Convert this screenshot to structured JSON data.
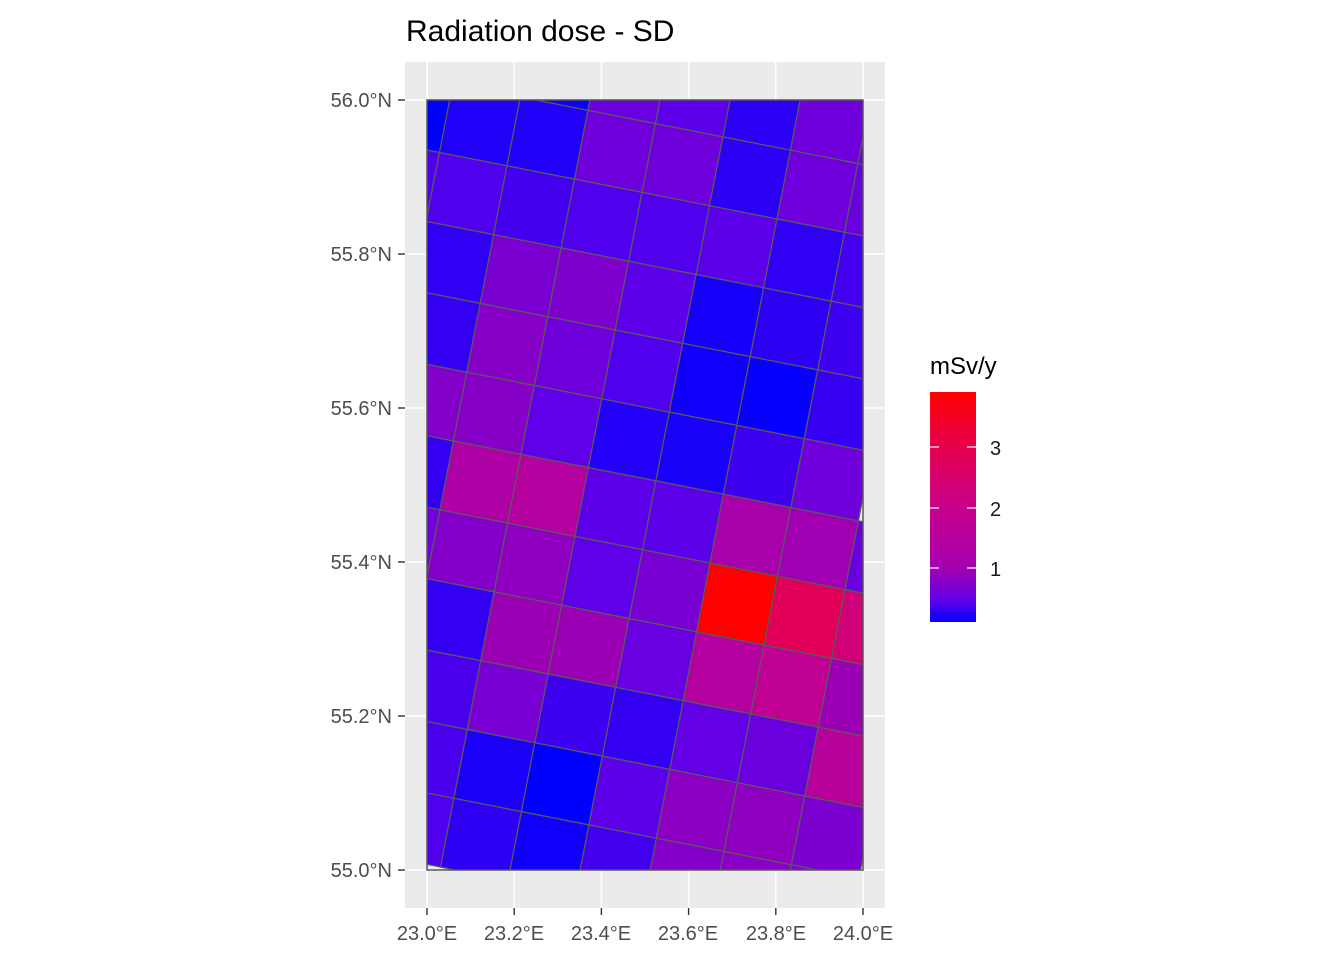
{
  "chart_data": {
    "type": "heatmap",
    "title": "Radiation dose - SD",
    "xlabel": "",
    "ylabel": "",
    "x_ticks": [
      "23.0°E",
      "23.2°E",
      "23.4°E",
      "23.6°E",
      "23.8°E",
      "24.0°E"
    ],
    "x_tick_values": [
      23.0,
      23.2,
      23.4,
      23.6,
      23.8,
      24.0
    ],
    "y_ticks": [
      "55.0°N",
      "55.2°N",
      "55.4°N",
      "55.6°N",
      "55.8°N",
      "56.0°N"
    ],
    "y_tick_values": [
      55.0,
      55.2,
      55.4,
      55.6,
      55.8,
      56.0
    ],
    "xlim": [
      23.0,
      24.0
    ],
    "ylim": [
      55.0,
      56.0
    ],
    "grid": true,
    "legend": {
      "title": "mSv/y",
      "placement": "right",
      "labels": [
        "1",
        "2",
        "3"
      ],
      "label_values": [
        1,
        2,
        3
      ],
      "range": [
        0.1,
        3.9
      ],
      "low_color": "#0000ff",
      "high_color": "#ff0000"
    },
    "cell_grid_note_rows": "rotated grid rows top to bottom, columns left to right; null = outside map",
    "cells": [
      [
        null,
        null,
        0.14,
        0.54,
        0.45,
        0.26,
        0.58,
        0.55,
        null
      ],
      [
        0.1,
        0.22,
        0.22,
        0.58,
        0.58,
        0.26,
        0.58,
        0.55,
        null
      ],
      [
        0.4,
        0.4,
        0.35,
        0.4,
        0.4,
        0.44,
        0.28,
        0.35,
        null
      ],
      [
        0.28,
        0.28,
        0.67,
        0.71,
        0.44,
        0.18,
        0.27,
        0.34,
        null
      ],
      [
        null,
        0.29,
        0.77,
        0.58,
        0.4,
        0.16,
        0.13,
        0.31,
        null
      ],
      [
        null,
        0.74,
        0.77,
        0.46,
        0.23,
        0.19,
        0.34,
        0.58,
        null
      ],
      [
        null,
        0.29,
        1.28,
        1.44,
        0.45,
        0.44,
        1.11,
        0.97,
        0.55
      ],
      [
        null,
        0.6,
        0.74,
        0.83,
        0.46,
        0.66,
        3.9,
        2.8,
        2.27
      ],
      [
        null,
        0.29,
        0.29,
        0.94,
        0.94,
        0.52,
        1.44,
        1.78,
        0.94
      ],
      [
        null,
        null,
        0.38,
        0.66,
        0.33,
        0.29,
        0.48,
        0.55,
        1.55
      ],
      [
        null,
        null,
        0.38,
        0.2,
        0.1,
        0.45,
        0.8,
        0.83,
        0.68
      ],
      [
        null,
        null,
        0.4,
        0.27,
        0.16,
        0.35,
        0.74,
        0.79,
        0.68
      ]
    ]
  }
}
